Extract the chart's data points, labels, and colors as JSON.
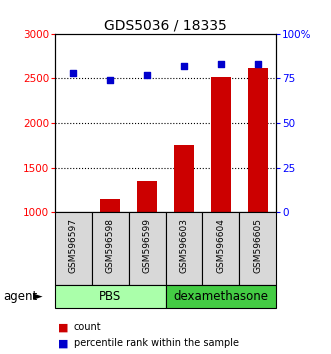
{
  "title": "GDS5036 / 18335",
  "samples": [
    "GSM596597",
    "GSM596598",
    "GSM596599",
    "GSM596603",
    "GSM596604",
    "GSM596605"
  ],
  "counts": [
    1005,
    1155,
    1350,
    1750,
    2520,
    2610
  ],
  "percentiles": [
    78,
    74,
    77,
    82,
    83,
    83
  ],
  "ylim_left": [
    1000,
    3000
  ],
  "ylim_right": [
    0,
    100
  ],
  "yticks_left": [
    1000,
    1500,
    2000,
    2500,
    3000
  ],
  "yticks_right": [
    0,
    25,
    50,
    75,
    100
  ],
  "yticklabels_right": [
    "0",
    "25",
    "50",
    "75",
    "100%"
  ],
  "bar_color": "#cc0000",
  "dot_color": "#0000cc",
  "bar_width": 0.55,
  "bg_color": "#d8d8d8",
  "legend_count_label": "count",
  "legend_pct_label": "percentile rank within the sample",
  "agent_label": "agent",
  "pbs_color": "#aaffaa",
  "dex_color": "#44cc44",
  "grid_dotted_at": [
    1500,
    2000,
    2500
  ]
}
